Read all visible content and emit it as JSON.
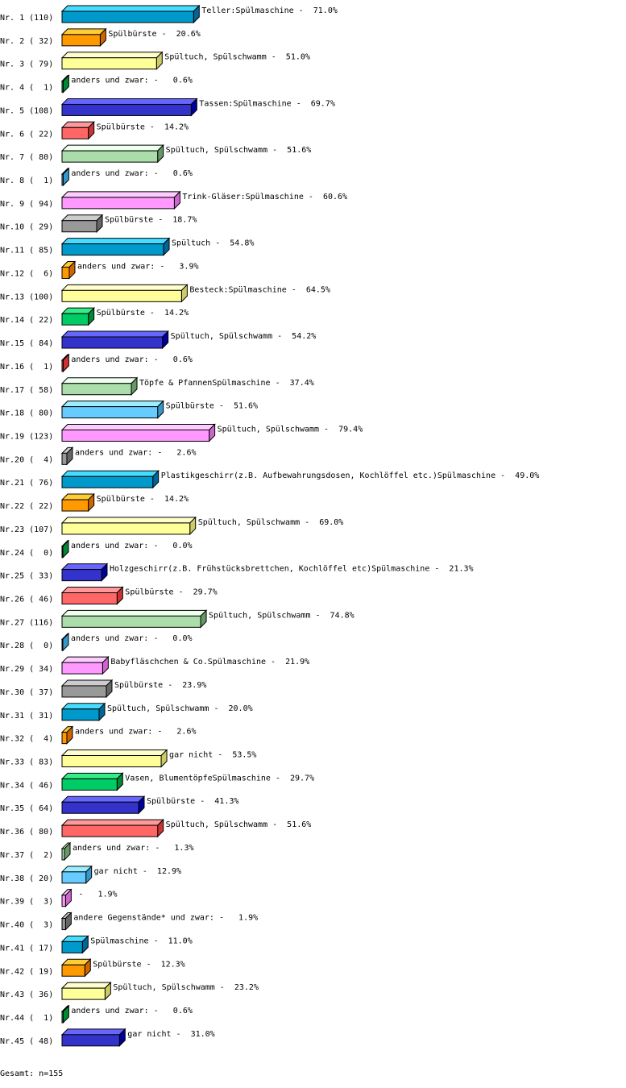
{
  "chart_data": {
    "type": "bar",
    "orientation": "horizontal",
    "style": "3d",
    "value_unit": "%",
    "categories": [
      "Nr. 1",
      "Nr. 2",
      "Nr. 3",
      "Nr. 4",
      "Nr. 5",
      "Nr. 6",
      "Nr. 7",
      "Nr. 8",
      "Nr. 9",
      "Nr.10",
      "Nr.11",
      "Nr.12",
      "Nr.13",
      "Nr.14",
      "Nr.15",
      "Nr.16",
      "Nr.17",
      "Nr.18",
      "Nr.19",
      "Nr.20",
      "Nr.21",
      "Nr.22",
      "Nr.23",
      "Nr.24",
      "Nr.25",
      "Nr.26",
      "Nr.27",
      "Nr.28",
      "Nr.29",
      "Nr.30",
      "Nr.31",
      "Nr.32",
      "Nr.33",
      "Nr.34",
      "Nr.35",
      "Nr.36",
      "Nr.37",
      "Nr.38",
      "Nr.39",
      "Nr.40",
      "Nr.41",
      "Nr.42",
      "Nr.43",
      "Nr.44",
      "Nr.45"
    ],
    "counts": [
      110,
      32,
      79,
      1,
      108,
      22,
      80,
      1,
      94,
      29,
      85,
      6,
      100,
      22,
      84,
      1,
      58,
      80,
      123,
      4,
      76,
      22,
      107,
      0,
      33,
      46,
      116,
      0,
      34,
      37,
      31,
      4,
      83,
      46,
      64,
      80,
      2,
      20,
      3,
      3,
      17,
      19,
      36,
      1,
      48
    ],
    "values": [
      71.0,
      20.6,
      51.0,
      0.6,
      69.7,
      14.2,
      51.6,
      0.6,
      60.6,
      18.7,
      54.8,
      3.9,
      64.5,
      14.2,
      54.2,
      0.6,
      37.4,
      51.6,
      79.4,
      2.6,
      49.0,
      14.2,
      69.0,
      0.0,
      21.3,
      29.7,
      74.8,
      0.0,
      21.9,
      23.9,
      20.0,
      2.6,
      53.5,
      29.7,
      41.3,
      51.6,
      1.3,
      12.9,
      1.9,
      1.9,
      11.0,
      12.3,
      23.2,
      0.6,
      31.0
    ],
    "labels": [
      "Teller:Spülmaschine",
      "Spülbürste",
      "Spültuch, Spülschwamm",
      "anders und zwar:",
      "Tassen:Spülmaschine",
      "Spülbürste",
      "Spültuch, Spülschwamm",
      "anders und zwar:",
      "Trink-Gläser:Spülmaschine",
      "Spülbürste",
      "Spültuch",
      "anders und zwar:",
      "Besteck:Spülmaschine",
      "Spülbürste",
      "Spültuch, Spülschwamm",
      "anders und zwar:",
      "Töpfe & PfannenSpülmaschine",
      "Spülbürste",
      "Spültuch, Spülschwamm",
      "anders und zwar:",
      "Plastikgeschirr(z.B. Aufbewahrungsdosen, Kochlöffel etc.)Spülmaschine",
      "Spülbürste",
      "Spültuch, Spülschwamm",
      "anders und zwar:",
      "Holzgeschirr(z.B. Frühstücksbrettchen, Kochlöffel etc)Spülmaschine",
      "Spülbürste",
      "Spültuch, Spülschwamm",
      "anders und zwar:",
      "Babyfläschchen & Co.Spülmaschine",
      "Spülbürste",
      "Spültuch, Spülschwamm",
      "anders und zwar:",
      "gar nicht",
      "Vasen, BlumentöpfeSpülmaschine",
      "Spülbürste",
      "Spültuch, Spülschwamm",
      "anders und zwar:",
      "gar nicht",
      "",
      "andere Gegenstände* und zwar:",
      "Spülmaschine",
      "Spülbürste",
      "Spültuch, Spülschwamm",
      "anders und zwar:",
      "gar nicht"
    ],
    "palette": [
      {
        "front": "#0099cc",
        "top": "#44ddff",
        "side": "#006699"
      },
      {
        "front": "#ff9900",
        "top": "#ffcc33",
        "side": "#cc6600"
      },
      {
        "front": "#ffff99",
        "top": "#ffffcc",
        "side": "#cccc66"
      },
      {
        "front": "#00cc66",
        "top": "#33ee88",
        "side": "#008833"
      },
      {
        "front": "#3333cc",
        "top": "#6666ff",
        "side": "#000099"
      },
      {
        "front": "#ff6666",
        "top": "#ff9999",
        "side": "#cc3333"
      },
      {
        "front": "#aaddaa",
        "top": "#eeffee",
        "side": "#669966"
      },
      {
        "front": "#66ccff",
        "top": "#99eeff",
        "side": "#3399cc"
      },
      {
        "front": "#ff99ff",
        "top": "#ffccff",
        "side": "#cc66cc"
      },
      {
        "front": "#999999",
        "top": "#cccccc",
        "side": "#666666"
      }
    ]
  },
  "footer": {
    "total": "Gesamt: n=155"
  }
}
